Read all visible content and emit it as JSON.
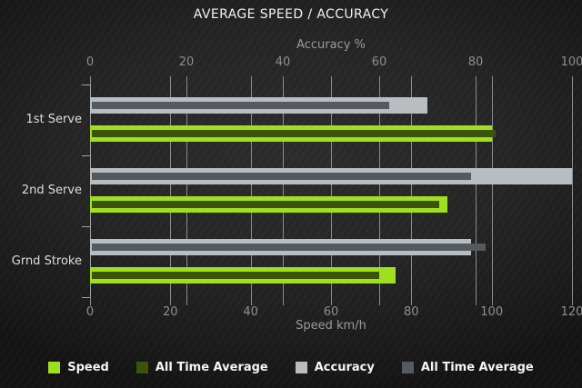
{
  "title": "AVERAGE SPEED / ACCURACY",
  "chart_data": {
    "type": "bar",
    "orientation": "horizontal",
    "title": "AVERAGE SPEED / ACCURACY",
    "categories": [
      "1st Serve",
      "2nd Serve",
      "Grnd Stroke"
    ],
    "axes": {
      "top": {
        "label": "Accuracy %",
        "range": [
          0,
          100
        ],
        "ticks": [
          0,
          20,
          40,
          60,
          80,
          100
        ]
      },
      "bottom": {
        "label": "Speed km/h",
        "range": [
          0,
          120
        ],
        "ticks": [
          0,
          20,
          40,
          60,
          80,
          100,
          120
        ]
      }
    },
    "series": [
      {
        "name": "Speed",
        "axis": "bottom",
        "role": "current",
        "color": "#a0de20",
        "values": [
          100,
          89,
          76
        ]
      },
      {
        "name": "All Time Average",
        "axis": "bottom",
        "role": "average",
        "color": "#3a530d",
        "values": [
          101,
          87,
          72
        ]
      },
      {
        "name": "Accuracy",
        "axis": "top",
        "role": "current",
        "color": "#b8bdc2",
        "values": [
          70,
          100,
          79
        ]
      },
      {
        "name": "All Time Average",
        "axis": "top",
        "role": "average",
        "color": "#555a60",
        "values": [
          62,
          79,
          82
        ]
      }
    ],
    "grid": true,
    "legend_position": "bottom"
  },
  "legend": {
    "items": [
      {
        "label": "Speed",
        "color": "#a0de20"
      },
      {
        "label": "All Time Average",
        "color": "#3a530d"
      },
      {
        "label": "Accuracy",
        "color": "#b8bdc2"
      },
      {
        "label": "All Time Average",
        "color": "#555a60"
      }
    ]
  },
  "style": {
    "gridline_color": "#8b8b8b",
    "axis_color": "#a0a0a0",
    "tick_label_color": "#8f8f8f",
    "category_label_color": "#dcdcdc",
    "title_color": "#f2f2f2"
  }
}
